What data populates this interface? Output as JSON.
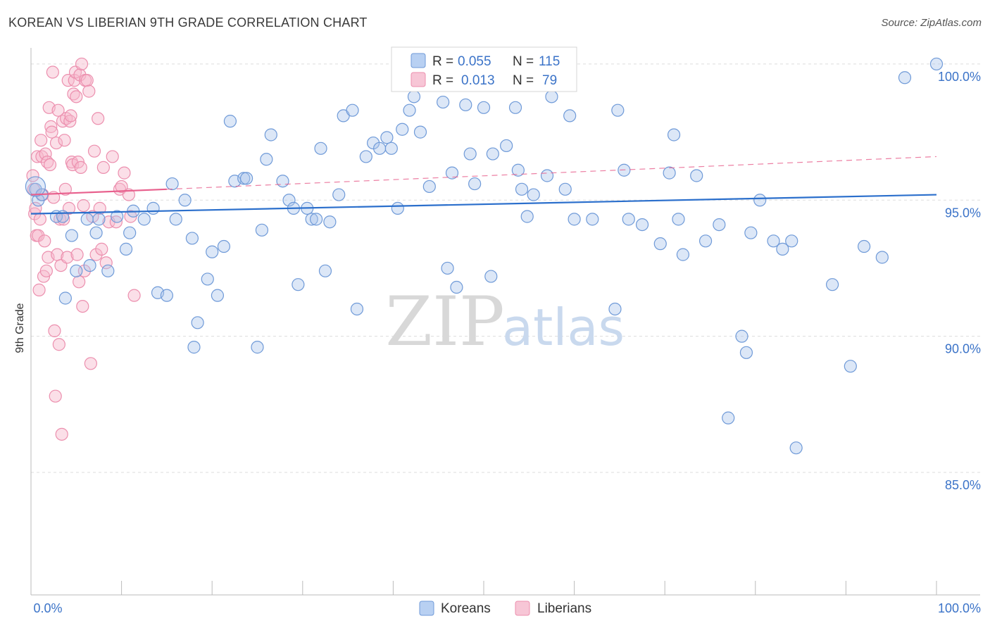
{
  "header": {
    "title": "KOREAN VS LIBERIAN 9TH GRADE CORRELATION CHART",
    "source": "Source: ZipAtlas.com"
  },
  "watermark": {
    "zip": "ZIP",
    "atlas": "atlas"
  },
  "stats_legend": {
    "row1": {
      "r_label": "R = ",
      "r_value": "0.055",
      "n_label": "N = ",
      "n_value": "115"
    },
    "row2": {
      "r_label": "R = ",
      "r_value": "0.013",
      "n_label": "N = ",
      "n_value": "79"
    }
  },
  "colors": {
    "korean_fill": "#a8c4ec",
    "korean_stroke": "#6f9ad8",
    "korean_line": "#2b6fcc",
    "liberian_fill": "#f7b8cc",
    "liberian_stroke": "#ec8fae",
    "liberian_line": "#e8608d",
    "tick_label": "#3b73c8",
    "grid": "#dddddd",
    "axis": "#bbbbbb"
  },
  "chart_data": {
    "type": "scatter",
    "title": "KOREAN VS LIBERIAN 9TH GRADE CORRELATION CHART",
    "xlabel": "",
    "ylabel": "9th Grade",
    "xlim": [
      0,
      100
    ],
    "ylim": [
      80.5,
      100.8
    ],
    "x_ticks": [
      "0.0%",
      "100.0%"
    ],
    "y_ticks": [
      {
        "value": 100,
        "label": "100.0%"
      },
      {
        "value": 95,
        "label": "95.0%"
      },
      {
        "value": 90,
        "label": "90.0%"
      },
      {
        "value": 85,
        "label": "85.0%"
      }
    ],
    "grid": true,
    "legend": [
      "Koreans",
      "Liberians"
    ],
    "series": [
      {
        "name": "Koreans",
        "r": 0.055,
        "n": 115,
        "trend": {
          "x": [
            0,
            100
          ],
          "y": [
            94.5,
            95.2
          ]
        },
        "points": [
          [
            0.5,
            95.4
          ],
          [
            0.8,
            95.0
          ],
          [
            1.2,
            95.2
          ],
          [
            2.8,
            94.4
          ],
          [
            3.5,
            94.4
          ],
          [
            4.5,
            93.7
          ],
          [
            5.0,
            92.4
          ],
          [
            6.2,
            94.3
          ],
          [
            6.5,
            92.6
          ],
          [
            7.5,
            94.3
          ],
          [
            8.5,
            92.4
          ],
          [
            9.5,
            94.4
          ],
          [
            10.5,
            93.2
          ],
          [
            10.9,
            93.8
          ],
          [
            11.3,
            94.6
          ],
          [
            12.5,
            94.3
          ],
          [
            13.5,
            94.7
          ],
          [
            14.0,
            91.6
          ],
          [
            15.0,
            91.5
          ],
          [
            15.6,
            95.6
          ],
          [
            16.0,
            94.3
          ],
          [
            17.8,
            93.6
          ],
          [
            18.0,
            89.6
          ],
          [
            18.4,
            90.5
          ],
          [
            19.5,
            92.1
          ],
          [
            20.0,
            93.1
          ],
          [
            20.6,
            91.5
          ],
          [
            21.3,
            93.3
          ],
          [
            22.0,
            97.9
          ],
          [
            22.5,
            95.7
          ],
          [
            23.5,
            95.8
          ],
          [
            23.8,
            95.8
          ],
          [
            25.0,
            89.6
          ],
          [
            25.5,
            93.9
          ],
          [
            26.0,
            96.5
          ],
          [
            26.5,
            97.4
          ],
          [
            27.8,
            95.7
          ],
          [
            28.5,
            95.0
          ],
          [
            29.0,
            94.7
          ],
          [
            29.5,
            91.9
          ],
          [
            30.5,
            94.7
          ],
          [
            31.0,
            94.3
          ],
          [
            31.5,
            94.3
          ],
          [
            32.0,
            96.9
          ],
          [
            32.5,
            92.4
          ],
          [
            33.0,
            94.2
          ],
          [
            34.0,
            95.2
          ],
          [
            34.5,
            98.1
          ],
          [
            35.5,
            98.3
          ],
          [
            36.0,
            91.0
          ],
          [
            37.0,
            96.6
          ],
          [
            37.8,
            97.1
          ],
          [
            38.5,
            96.9
          ],
          [
            39.3,
            97.3
          ],
          [
            39.8,
            96.9
          ],
          [
            40.5,
            94.7
          ],
          [
            41.0,
            97.6
          ],
          [
            41.8,
            98.3
          ],
          [
            42.3,
            98.8
          ],
          [
            43.0,
            97.5
          ],
          [
            44.0,
            95.5
          ],
          [
            45.5,
            98.6
          ],
          [
            46.0,
            92.5
          ],
          [
            46.5,
            96.0
          ],
          [
            47.0,
            91.8
          ],
          [
            48.0,
            98.5
          ],
          [
            48.5,
            96.7
          ],
          [
            49.0,
            95.6
          ],
          [
            50.0,
            98.4
          ],
          [
            50.8,
            92.2
          ],
          [
            51.0,
            96.7
          ],
          [
            52.5,
            97.0
          ],
          [
            53.5,
            98.4
          ],
          [
            53.8,
            96.1
          ],
          [
            54.2,
            95.4
          ],
          [
            54.8,
            94.4
          ],
          [
            55.5,
            95.2
          ],
          [
            56.5,
            100.0
          ],
          [
            57.0,
            95.9
          ],
          [
            57.5,
            98.8
          ],
          [
            59.0,
            95.4
          ],
          [
            60.0,
            94.3
          ],
          [
            62.0,
            94.3
          ],
          [
            64.5,
            91.0
          ],
          [
            64.8,
            98.3
          ],
          [
            65.5,
            96.1
          ],
          [
            66.0,
            94.3
          ],
          [
            67.5,
            94.1
          ],
          [
            69.5,
            93.4
          ],
          [
            70.5,
            96.0
          ],
          [
            71.0,
            97.4
          ],
          [
            71.5,
            94.3
          ],
          [
            72.0,
            93.0
          ],
          [
            73.5,
            95.9
          ],
          [
            74.5,
            93.5
          ],
          [
            76.0,
            94.1
          ],
          [
            77.0,
            87.0
          ],
          [
            78.5,
            90.0
          ],
          [
            79.0,
            89.4
          ],
          [
            79.5,
            93.8
          ],
          [
            80.5,
            95.0
          ],
          [
            82.0,
            93.5
          ],
          [
            83.0,
            93.2
          ],
          [
            84.0,
            93.5
          ],
          [
            84.5,
            85.9
          ],
          [
            88.5,
            91.9
          ],
          [
            90.5,
            88.9
          ],
          [
            92.0,
            93.3
          ],
          [
            94.0,
            92.9
          ],
          [
            96.5,
            99.5
          ],
          [
            100.0,
            100.0
          ],
          [
            3.8,
            91.4
          ],
          [
            7.2,
            93.8
          ],
          [
            17.0,
            95.0
          ],
          [
            59.5,
            98.1
          ]
        ]
      },
      {
        "name": "Liberians",
        "r": 0.013,
        "n": 79,
        "trend": {
          "x": [
            0,
            15
          ],
          "y": [
            95.2,
            95.4
          ],
          "dashed_to": {
            "x": 100,
            "y": 96.6
          }
        },
        "points": [
          [
            0.2,
            95.9
          ],
          [
            0.3,
            95.4
          ],
          [
            0.4,
            94.5
          ],
          [
            0.5,
            94.7
          ],
          [
            0.6,
            93.7
          ],
          [
            0.7,
            96.6
          ],
          [
            0.8,
            93.7
          ],
          [
            0.9,
            91.7
          ],
          [
            1.0,
            94.3
          ],
          [
            1.1,
            97.2
          ],
          [
            1.2,
            96.6
          ],
          [
            1.3,
            95.2
          ],
          [
            1.4,
            92.2
          ],
          [
            1.5,
            93.5
          ],
          [
            1.6,
            96.7
          ],
          [
            1.7,
            92.4
          ],
          [
            1.8,
            96.4
          ],
          [
            1.9,
            92.9
          ],
          [
            2.0,
            98.4
          ],
          [
            2.1,
            96.3
          ],
          [
            2.2,
            97.7
          ],
          [
            2.3,
            97.5
          ],
          [
            2.4,
            99.7
          ],
          [
            2.5,
            95.1
          ],
          [
            2.6,
            90.2
          ],
          [
            2.7,
            87.8
          ],
          [
            2.8,
            97.1
          ],
          [
            2.9,
            93.0
          ],
          [
            3.0,
            98.3
          ],
          [
            3.1,
            89.7
          ],
          [
            3.2,
            94.3
          ],
          [
            3.3,
            92.6
          ],
          [
            3.4,
            86.4
          ],
          [
            3.5,
            97.9
          ],
          [
            3.6,
            94.3
          ],
          [
            3.7,
            97.2
          ],
          [
            3.8,
            95.4
          ],
          [
            3.9,
            98.0
          ],
          [
            4.0,
            92.9
          ],
          [
            4.1,
            99.4
          ],
          [
            4.2,
            94.7
          ],
          [
            4.3,
            97.9
          ],
          [
            4.4,
            98.1
          ],
          [
            4.5,
            96.4
          ],
          [
            4.6,
            96.3
          ],
          [
            4.7,
            98.9
          ],
          [
            4.8,
            99.4
          ],
          [
            4.9,
            99.7
          ],
          [
            5.0,
            98.8
          ],
          [
            5.1,
            93.0
          ],
          [
            5.2,
            96.4
          ],
          [
            5.3,
            92.0
          ],
          [
            5.4,
            99.6
          ],
          [
            5.5,
            96.2
          ],
          [
            5.6,
            100.0
          ],
          [
            5.7,
            91.1
          ],
          [
            5.8,
            94.8
          ],
          [
            5.9,
            92.4
          ],
          [
            6.0,
            99.4
          ],
          [
            6.2,
            99.4
          ],
          [
            6.4,
            99.0
          ],
          [
            6.6,
            89.0
          ],
          [
            6.8,
            94.4
          ],
          [
            7.0,
            96.8
          ],
          [
            7.2,
            93.0
          ],
          [
            7.4,
            98.0
          ],
          [
            7.6,
            94.7
          ],
          [
            7.8,
            93.2
          ],
          [
            8.0,
            96.2
          ],
          [
            8.3,
            92.7
          ],
          [
            8.6,
            94.2
          ],
          [
            9.0,
            96.6
          ],
          [
            9.4,
            94.2
          ],
          [
            9.8,
            95.4
          ],
          [
            10.0,
            95.5
          ],
          [
            10.3,
            96.0
          ],
          [
            10.8,
            95.2
          ],
          [
            11.0,
            94.4
          ],
          [
            11.4,
            91.5
          ]
        ]
      }
    ]
  },
  "bottom_legend": {
    "koreans": "Koreans",
    "liberians": "Liberians"
  }
}
